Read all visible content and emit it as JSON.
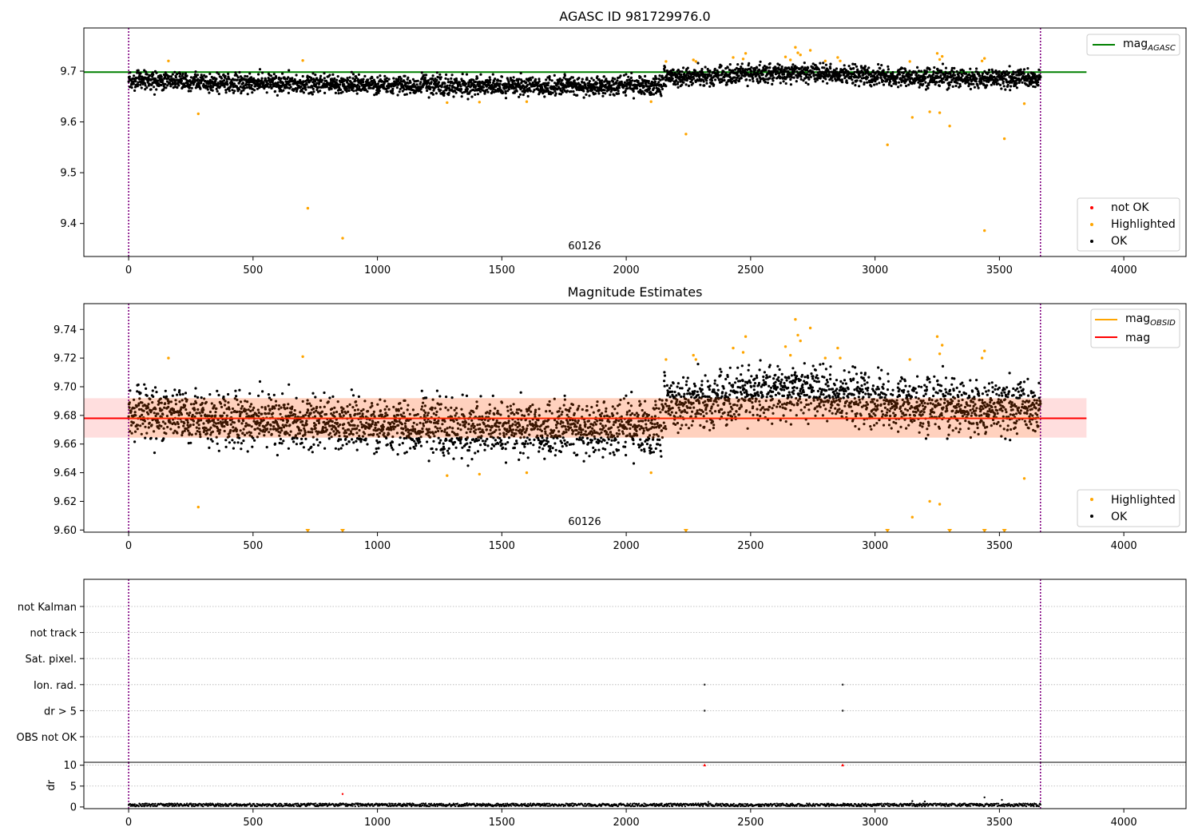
{
  "figure": {
    "panel1_title": "AGASC ID 981729976.0",
    "panel2_title": "Magnitude Estimates",
    "obsid_label": "60126"
  },
  "colors": {
    "ok": "#000000",
    "highlighted": "#ffa500",
    "not_ok": "#ff0000",
    "mag_agasc": "#008000",
    "mag": "#ff0000",
    "mag_obsid": "#ffa500",
    "band": "#ffcccc",
    "obs_boundary": "#800080",
    "grid": "#b0b0b0"
  },
  "chart_data": [
    {
      "type": "scatter",
      "title": "AGASC ID 981729976.0",
      "xlim": [
        -180,
        4250
      ],
      "ylim": [
        9.335,
        9.785
      ],
      "xticks": [
        0,
        500,
        1000,
        1500,
        2000,
        2500,
        3000,
        3500,
        4000
      ],
      "yticks": [
        9.4,
        9.5,
        9.6,
        9.7
      ],
      "ytick_labels": [
        "9.4",
        "9.5",
        "9.6",
        "9.7"
      ],
      "legend_placement": "top-right / bottom-right",
      "lines": [
        {
          "name": "mag",
          "subscript": "AGASC",
          "y": 9.698,
          "x_range": [
            -180,
            3850
          ]
        }
      ],
      "scatter_legend": [
        "not OK",
        "Highlighted",
        "OK"
      ],
      "observation_boundaries": [
        0,
        3665
      ],
      "ok_points_trend": {
        "x": [
          0,
          500,
          1000,
          1500,
          2000,
          2140,
          2150,
          2500,
          2700,
          3000,
          3400,
          3665
        ],
        "y": [
          9.682,
          9.676,
          9.673,
          9.67,
          9.672,
          9.67,
          9.688,
          9.695,
          9.697,
          9.69,
          9.686,
          9.684
        ],
        "spread": 0.012,
        "count": 3660
      },
      "highlighted_points": [
        [
          160,
          9.72
        ],
        [
          280,
          9.616
        ],
        [
          700,
          9.721
        ],
        [
          720,
          9.43
        ],
        [
          860,
          9.371
        ],
        [
          1280,
          9.638
        ],
        [
          1410,
          9.639
        ],
        [
          1600,
          9.64
        ],
        [
          2100,
          9.64
        ],
        [
          2160,
          9.719
        ],
        [
          2240,
          9.576
        ],
        [
          2270,
          9.722
        ],
        [
          2280,
          9.719
        ],
        [
          2430,
          9.727
        ],
        [
          2470,
          9.724
        ],
        [
          2480,
          9.735
        ],
        [
          2640,
          9.728
        ],
        [
          2660,
          9.722
        ],
        [
          2680,
          9.747
        ],
        [
          2690,
          9.736
        ],
        [
          2700,
          9.732
        ],
        [
          2740,
          9.741
        ],
        [
          2800,
          9.72
        ],
        [
          2850,
          9.727
        ],
        [
          2860,
          9.72
        ],
        [
          3050,
          9.555
        ],
        [
          3140,
          9.719
        ],
        [
          3150,
          9.609
        ],
        [
          3220,
          9.62
        ],
        [
          3250,
          9.735
        ],
        [
          3260,
          9.723
        ],
        [
          3270,
          9.729
        ],
        [
          3260,
          9.618
        ],
        [
          3300,
          9.592
        ],
        [
          3430,
          9.72
        ],
        [
          3440,
          9.725
        ],
        [
          3440,
          9.386
        ],
        [
          3520,
          9.567
        ],
        [
          3600,
          9.636
        ]
      ]
    },
    {
      "type": "scatter",
      "title": "Magnitude Estimates",
      "xlim": [
        -180,
        4250
      ],
      "ylim": [
        9.5985,
        9.758
      ],
      "xticks": [
        0,
        500,
        1000,
        1500,
        2000,
        2500,
        3000,
        3500,
        4000
      ],
      "yticks": [
        9.6,
        9.62,
        9.64,
        9.66,
        9.68,
        9.7,
        9.72,
        9.74
      ],
      "ytick_labels": [
        "9.60",
        "9.62",
        "9.64",
        "9.66",
        "9.68",
        "9.70",
        "9.72",
        "9.74"
      ],
      "legend_placement": "top-right / bottom-right",
      "lines": [
        {
          "name": "mag",
          "subscript": "OBSID",
          "y": 9.678,
          "x_range": [
            0,
            3665
          ]
        },
        {
          "name": "mag",
          "y": 9.678,
          "x_range": [
            -180,
            3850
          ]
        }
      ],
      "band": {
        "y_low": 9.6645,
        "y_high": 9.692,
        "x_range": [
          -180,
          3850
        ]
      },
      "scatter_legend": [
        "Highlighted",
        "OK"
      ],
      "observation_boundaries": [
        0,
        3665
      ],
      "ok_points_trend": {
        "x": [
          0,
          500,
          1000,
          1500,
          2000,
          2140,
          2150,
          2500,
          2700,
          3000,
          3400,
          3665
        ],
        "y": [
          9.682,
          9.676,
          9.673,
          9.67,
          9.672,
          9.67,
          9.688,
          9.695,
          9.697,
          9.69,
          9.686,
          9.684
        ],
        "spread": 0.012,
        "count": 3660
      },
      "highlighted_points": [
        [
          160,
          9.72
        ],
        [
          280,
          9.616
        ],
        [
          700,
          9.721
        ],
        [
          1280,
          9.638
        ],
        [
          1410,
          9.639
        ],
        [
          1600,
          9.64
        ],
        [
          2100,
          9.64
        ],
        [
          2160,
          9.719
        ],
        [
          2270,
          9.722
        ],
        [
          2280,
          9.719
        ],
        [
          2430,
          9.727
        ],
        [
          2470,
          9.724
        ],
        [
          2480,
          9.735
        ],
        [
          2640,
          9.728
        ],
        [
          2660,
          9.722
        ],
        [
          2680,
          9.747
        ],
        [
          2690,
          9.736
        ],
        [
          2700,
          9.732
        ],
        [
          2740,
          9.741
        ],
        [
          2800,
          9.72
        ],
        [
          2850,
          9.727
        ],
        [
          2860,
          9.72
        ],
        [
          3140,
          9.719
        ],
        [
          3150,
          9.609
        ],
        [
          3220,
          9.62
        ],
        [
          3250,
          9.735
        ],
        [
          3260,
          9.723
        ],
        [
          3270,
          9.729
        ],
        [
          3260,
          9.618
        ],
        [
          3430,
          9.72
        ],
        [
          3440,
          9.725
        ],
        [
          3600,
          9.636
        ]
      ],
      "off_scale_markers_x": [
        720,
        860,
        2240,
        3050,
        3300,
        3440,
        3520
      ]
    },
    {
      "type": "scatter",
      "xlim": [
        -180,
        4250
      ],
      "categories": [
        "not Kalman",
        "not track",
        "Sat. pixel.",
        "Ion. rad.",
        "dr > 5",
        "OBS not OK"
      ],
      "flag_points": [
        {
          "category": "Ion. rad.",
          "x": [
            2315,
            2870
          ]
        },
        {
          "category": "dr > 5",
          "x": [
            2315,
            2870
          ]
        }
      ],
      "observation_boundaries": [
        0,
        3665
      ]
    },
    {
      "type": "scatter",
      "xlabel": "",
      "ylabel": "dr",
      "xlim": [
        -180,
        4250
      ],
      "ylim": [
        -0.4,
        10.7
      ],
      "xticks": [
        0,
        500,
        1000,
        1500,
        2000,
        2500,
        3000,
        3500,
        4000
      ],
      "yticks": [
        0,
        5,
        10
      ],
      "ytick_labels": [
        "0",
        "5",
        "10"
      ],
      "dr_trend": {
        "x_range": [
          0,
          3665
        ],
        "typical": 0.5,
        "spread": 0.35
      },
      "dr_outliers": [
        [
          860,
          3.1
        ],
        [
          1360,
          0.9
        ],
        [
          2330,
          1.2
        ],
        [
          3150,
          1.4
        ],
        [
          3440,
          2.3
        ],
        [
          3510,
          1.7
        ],
        [
          3200,
          1.3
        ]
      ],
      "dr_off_scale_x": [
        2315,
        2870
      ],
      "observation_boundaries": [
        0,
        3665
      ]
    }
  ]
}
